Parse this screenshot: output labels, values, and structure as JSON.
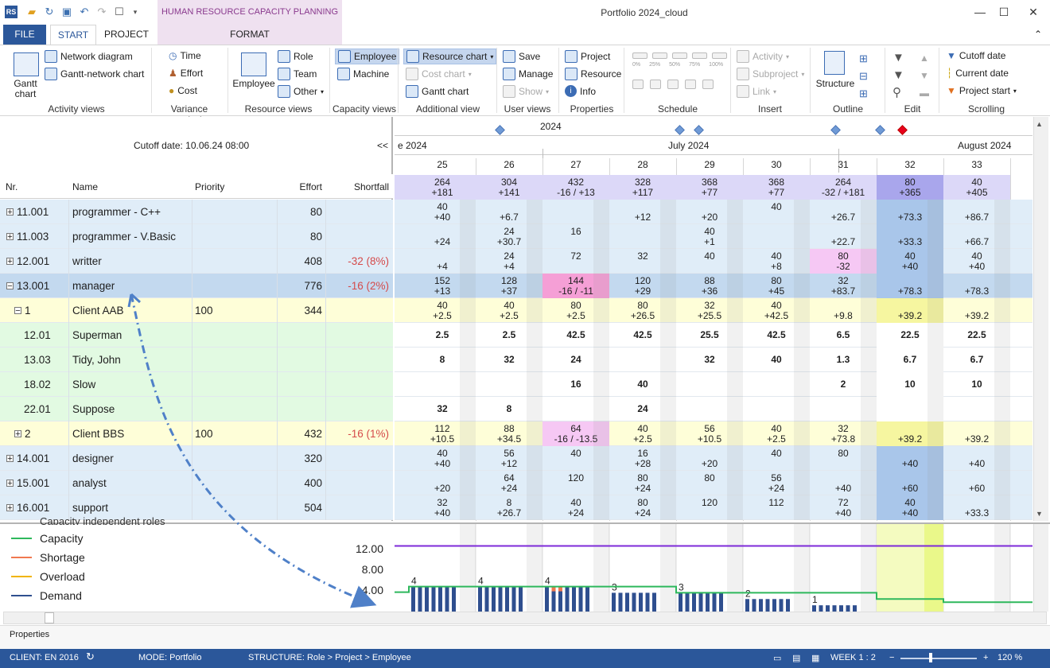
{
  "title_bar": {
    "app_title": "Portfolio 2024_cloud",
    "context_group": "HUMAN RESOURCE CAPACITY PLANNING",
    "quick_access": [
      "app-icon",
      "open-icon",
      "refresh-icon",
      "save-icon",
      "undo-icon",
      "redo-icon",
      "window-icon",
      "dropdown-icon"
    ]
  },
  "tabs": {
    "file": "FILE",
    "start": "START",
    "project": "PROJECT",
    "format": "FORMAT"
  },
  "ribbon": {
    "activity_views": {
      "label": "Activity views",
      "gantt": "Gantt chart",
      "network": "Network diagram",
      "gantt_network": "Gantt-network chart"
    },
    "variance": {
      "label": "Variance analysis",
      "time": "Time",
      "effort": "Effort",
      "cost": "Cost"
    },
    "resource_views": {
      "label": "Resource views",
      "employee": "Employee",
      "role": "Role",
      "team": "Team",
      "other": "Other"
    },
    "capacity_views": {
      "label": "Capacity views",
      "employee": "Employee",
      "machine": "Machine"
    },
    "additional_view": {
      "label": "Additional view",
      "resource_chart": "Resource chart",
      "cost_chart": "Cost chart",
      "gantt_chart": "Gantt chart"
    },
    "user_views": {
      "label": "User views",
      "save": "Save",
      "manage": "Manage",
      "show": "Show"
    },
    "properties": {
      "label": "Properties",
      "project": "Project",
      "resource": "Resource",
      "info": "Info"
    },
    "schedule": {
      "label": "Schedule",
      "pcts": [
        "0%",
        "25%",
        "50%",
        "75%",
        "100%"
      ]
    },
    "insert": {
      "label": "Insert",
      "activity": "Activity",
      "subproject": "Subproject",
      "link": "Link"
    },
    "outline": {
      "label": "Outline",
      "structure": "Structure"
    },
    "edit": {
      "label": "Edit"
    },
    "scrolling": {
      "label": "Scrolling",
      "cutoff": "Cutoff date",
      "current": "Current date",
      "project_start": "Project start"
    }
  },
  "cutoff": "Cutoff date:  10.06.24 08:00",
  "scroll_left": "<<",
  "columns": {
    "nr": "Nr.",
    "name": "Name",
    "priority": "Priority",
    "effort": "Effort",
    "shortfall": "Shortfall"
  },
  "rows": [
    {
      "nr": "11.001",
      "name": "programmer - C++",
      "priority": "",
      "effort": "80",
      "shortfall": "",
      "expand": "+",
      "kind": "role"
    },
    {
      "nr": "11.003",
      "name": "programmer - V.Basic",
      "priority": "",
      "effort": "80",
      "shortfall": "",
      "expand": "+",
      "kind": "role"
    },
    {
      "nr": "12.001",
      "name": "writter",
      "priority": "",
      "effort": "408",
      "shortfall": "-32 (8%)",
      "expand": "+",
      "kind": "role"
    },
    {
      "nr": "13.001",
      "name": "manager",
      "priority": "",
      "effort": "776",
      "shortfall": "-16 (2%)",
      "expand": "−",
      "kind": "selected"
    },
    {
      "nr": "1",
      "name": "Client AAB",
      "priority": "100",
      "effort": "344",
      "shortfall": "",
      "expand": "−",
      "kind": "project"
    },
    {
      "nr": "12.01",
      "name": "Superman",
      "priority": "",
      "effort": "",
      "shortfall": "",
      "expand": "",
      "kind": "employee"
    },
    {
      "nr": "13.03",
      "name": "Tidy, John",
      "priority": "",
      "effort": "",
      "shortfall": "",
      "expand": "",
      "kind": "employee"
    },
    {
      "nr": "18.02",
      "name": "Slow",
      "priority": "",
      "effort": "",
      "shortfall": "",
      "expand": "",
      "kind": "employee"
    },
    {
      "nr": "22.01",
      "name": "Suppose",
      "priority": "",
      "effort": "",
      "shortfall": "",
      "expand": "",
      "kind": "employee"
    },
    {
      "nr": "2",
      "name": "Client BBS",
      "priority": "100",
      "effort": "432",
      "shortfall": "-16 (1%)",
      "expand": "+",
      "kind": "project"
    },
    {
      "nr": "14.001",
      "name": "designer",
      "priority": "",
      "effort": "320",
      "shortfall": "",
      "expand": "+",
      "kind": "role"
    },
    {
      "nr": "15.001",
      "name": "analyst",
      "priority": "",
      "effort": "400",
      "shortfall": "",
      "expand": "+",
      "kind": "role"
    },
    {
      "nr": "16.001",
      "name": "support",
      "priority": "",
      "effort": "504",
      "shortfall": "",
      "expand": "+",
      "kind": "role"
    }
  ],
  "timeline": {
    "year": "2024",
    "months": [
      "e 2024",
      "July 2024",
      "August 2024"
    ],
    "weeks": [
      "25",
      "26",
      "27",
      "28",
      "29",
      "30",
      "31",
      "32",
      "33"
    ]
  },
  "totals": [
    [
      "264",
      "+181"
    ],
    [
      "304",
      "+141"
    ],
    [
      "432",
      "-16 / +13"
    ],
    [
      "328",
      "+117"
    ],
    [
      "368",
      "+77"
    ],
    [
      "368",
      "+77"
    ],
    [
      "264",
      "-32 / +181"
    ],
    [
      "80",
      "+365"
    ],
    [
      "40",
      "+405"
    ]
  ],
  "grid": [
    [
      [
        "40",
        "+40"
      ],
      [
        "",
        "+6.7"
      ],
      [
        "",
        ""
      ],
      [
        "",
        "+12"
      ],
      [
        "",
        "+20"
      ],
      [
        "40",
        ""
      ],
      [
        "",
        "+26.7"
      ],
      [
        "",
        "+73.3"
      ],
      [
        "",
        "+86.7"
      ]
    ],
    [
      [
        "",
        "+24"
      ],
      [
        "24",
        "+30.7"
      ],
      [
        "16",
        ""
      ],
      [
        "",
        ""
      ],
      [
        "40",
        "+1"
      ],
      [
        "",
        ""
      ],
      [
        "",
        "+22.7"
      ],
      [
        "",
        "+33.3"
      ],
      [
        "",
        "+66.7"
      ]
    ],
    [
      [
        "",
        "+4"
      ],
      [
        "24",
        "+4"
      ],
      [
        "72",
        ""
      ],
      [
        "32",
        ""
      ],
      [
        "40",
        ""
      ],
      [
        "40",
        "+8"
      ],
      [
        "80",
        "-32"
      ],
      [
        "40",
        "+40"
      ],
      [
        "40",
        "+40"
      ]
    ],
    [
      [
        "152",
        "+13"
      ],
      [
        "128",
        "+37"
      ],
      [
        "144",
        "-16 / -11"
      ],
      [
        "120",
        "+29"
      ],
      [
        "88",
        "+36"
      ],
      [
        "80",
        "+45"
      ],
      [
        "32",
        "+83.7"
      ],
      [
        "",
        "+78.3"
      ],
      [
        "",
        "+78.3"
      ]
    ],
    [
      [
        "40",
        "+2.5"
      ],
      [
        "40",
        "+2.5"
      ],
      [
        "80",
        "+2.5"
      ],
      [
        "80",
        "+26.5"
      ],
      [
        "32",
        "+25.5"
      ],
      [
        "40",
        "+42.5"
      ],
      [
        "",
        "+9.8"
      ],
      [
        "",
        "+39.2"
      ],
      [
        "",
        "+39.2"
      ]
    ],
    [
      [
        "2.5"
      ],
      [
        "2.5"
      ],
      [
        "42.5"
      ],
      [
        "42.5"
      ],
      [
        "25.5"
      ],
      [
        "42.5"
      ],
      [
        "6.5"
      ],
      [
        "22.5"
      ],
      [
        "22.5"
      ]
    ],
    [
      [
        "8"
      ],
      [
        "32"
      ],
      [
        "24"
      ],
      [
        ""
      ],
      [
        "32"
      ],
      [
        "40"
      ],
      [
        "1.3"
      ],
      [
        "6.7"
      ],
      [
        "6.7"
      ]
    ],
    [
      [
        ""
      ],
      [
        ""
      ],
      [
        "16"
      ],
      [
        "40"
      ],
      [
        ""
      ],
      [
        ""
      ],
      [
        "2"
      ],
      [
        "10"
      ],
      [
        "10"
      ]
    ],
    [
      [
        "32"
      ],
      [
        "8"
      ],
      [
        ""
      ],
      [
        "24"
      ],
      [
        ""
      ],
      [
        ""
      ],
      [
        ""
      ],
      [
        ""
      ],
      [
        ""
      ]
    ],
    [
      [
        "112",
        "+10.5"
      ],
      [
        "88",
        "+34.5"
      ],
      [
        "64",
        "-16 / -13.5"
      ],
      [
        "40",
        "+2.5"
      ],
      [
        "56",
        "+10.5"
      ],
      [
        "40",
        "+2.5"
      ],
      [
        "32",
        "+73.8"
      ],
      [
        "",
        "+39.2"
      ],
      [
        "",
        "+39.2"
      ]
    ],
    [
      [
        "40",
        "+40"
      ],
      [
        "56",
        "+12"
      ],
      [
        "40",
        ""
      ],
      [
        "16",
        "+28"
      ],
      [
        "",
        "+20"
      ],
      [
        "40",
        ""
      ],
      [
        "80",
        ""
      ],
      [
        "",
        "+40"
      ],
      [
        "",
        "+40"
      ]
    ],
    [
      [
        "",
        "+20"
      ],
      [
        "64",
        "+24"
      ],
      [
        "120",
        ""
      ],
      [
        "80",
        "+24"
      ],
      [
        "80",
        ""
      ],
      [
        "56",
        "+24"
      ],
      [
        "",
        "+40"
      ],
      [
        "",
        "+60"
      ],
      [
        "",
        "+60"
      ]
    ],
    [
      [
        "32",
        "+40"
      ],
      [
        "8",
        "+26.7"
      ],
      [
        "40",
        "+24"
      ],
      [
        "80",
        "+24"
      ],
      [
        "120",
        ""
      ],
      [
        "112",
        ""
      ],
      [
        "72",
        "+40"
      ],
      [
        "40",
        "+40"
      ],
      [
        "",
        "+33.3"
      ]
    ]
  ],
  "legend": {
    "cut_label": "Capacity independent roles",
    "items": [
      {
        "name": "Capacity",
        "color": "#2eb85c"
      },
      {
        "name": "Shortage",
        "color": "#f07850"
      },
      {
        "name": "Overload",
        "color": "#f0b400"
      },
      {
        "name": "Demand",
        "color": "#2f4f8f"
      }
    ]
  },
  "chart_data": {
    "type": "bar",
    "categories": [
      "25",
      "26",
      "27",
      "28",
      "29",
      "30",
      "31",
      "32",
      "33"
    ],
    "ylim": [
      0,
      14
    ],
    "yticks": [
      "12.00",
      "8.00",
      "4.00"
    ],
    "series": [
      {
        "name": "Demand",
        "values": [
          4,
          4,
          4,
          3,
          3,
          2,
          1,
          0,
          0
        ]
      },
      {
        "name": "Capacity",
        "values": [
          4,
          4,
          4,
          4,
          3,
          3,
          3,
          2,
          1.5
        ]
      }
    ],
    "bar_labels": [
      "4",
      "4",
      "4",
      "3",
      "3",
      "2",
      "1",
      "",
      ""
    ],
    "limit_line": 10.5
  },
  "properties_label": "Properties",
  "status": {
    "client": "CLIENT: EN 2016",
    "mode": "MODE: Portfolio",
    "structure": "STRUCTURE: Role > Project > Employee",
    "week": "WEEK 1 : 2",
    "zoom": "120 %"
  },
  "colors": {
    "accent": "#2b579a",
    "role_row": "#e0edf8",
    "selected_row": "#c3d9ef",
    "project_row": "#fefed8",
    "employee_row": "#e2fae2",
    "header_week": "#dcd8f8"
  }
}
